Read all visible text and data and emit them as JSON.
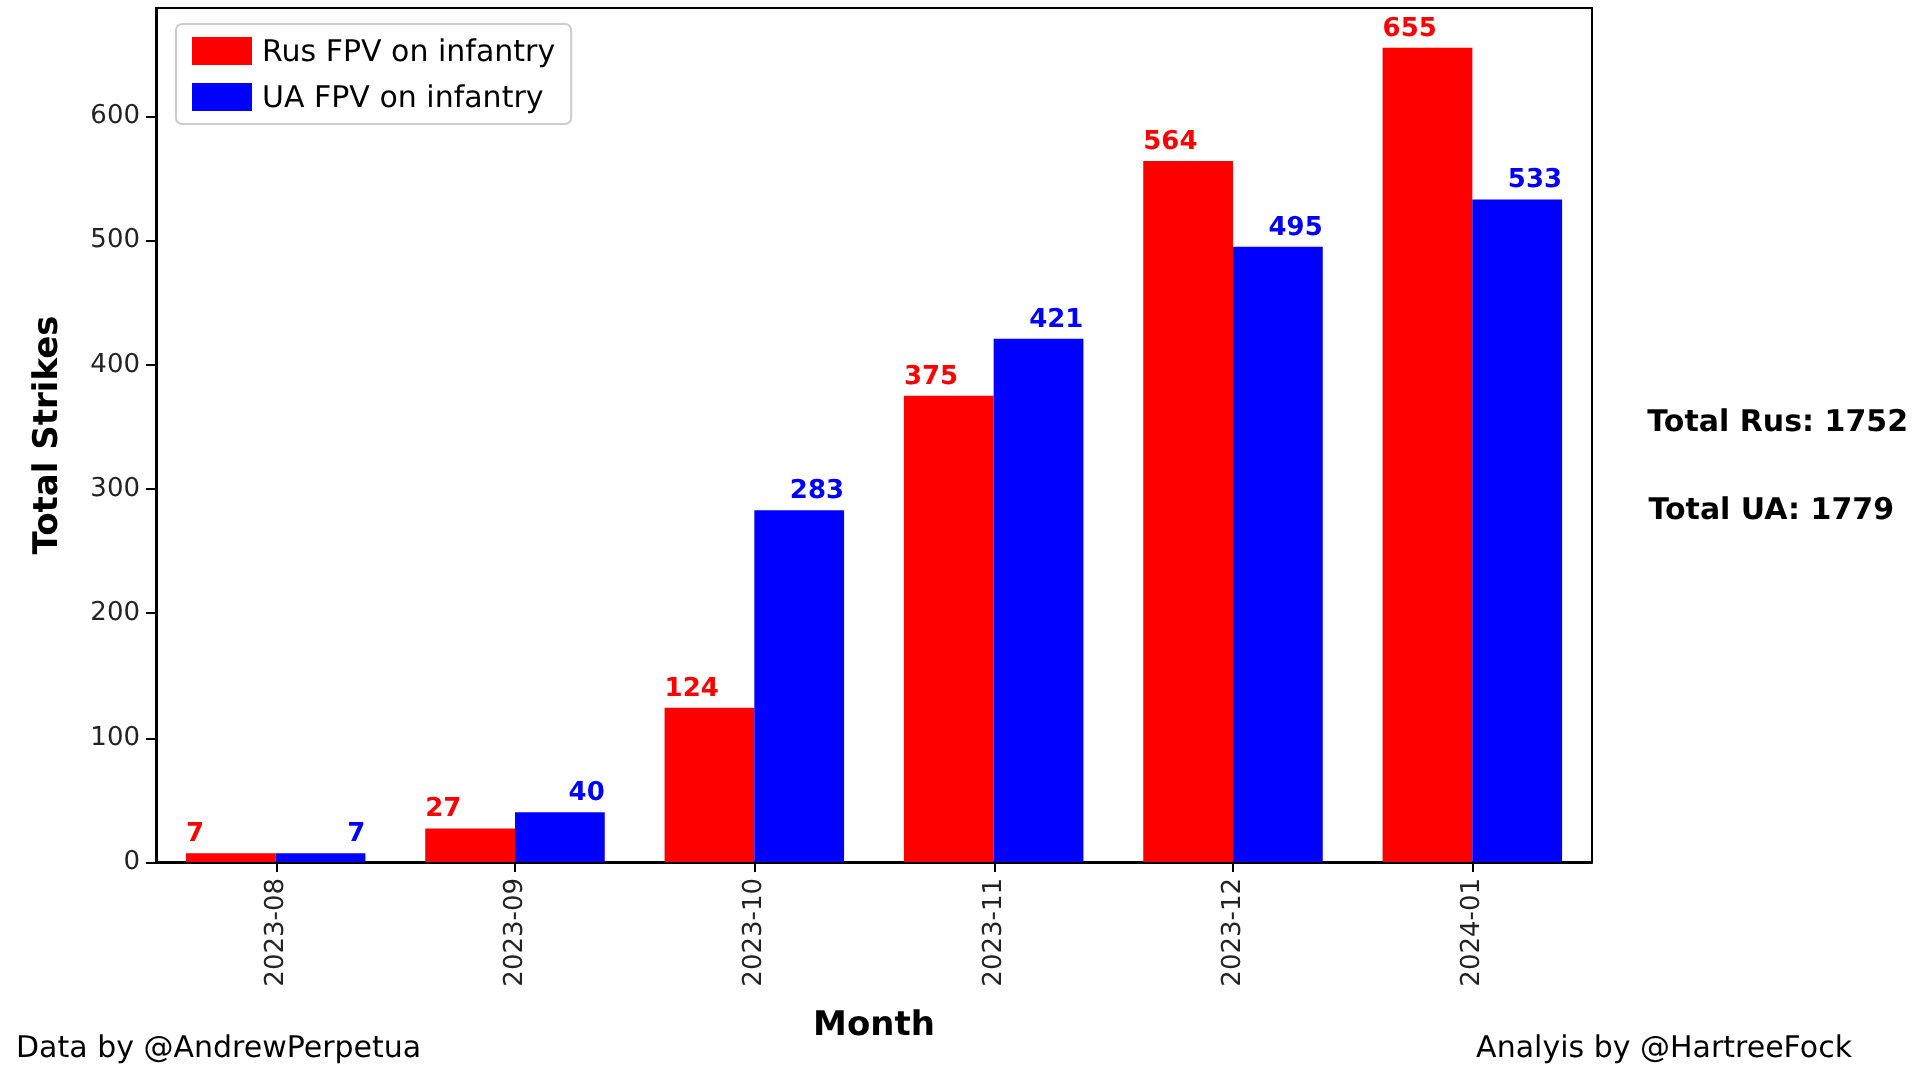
{
  "chart_data": {
    "type": "bar",
    "xlabel": "Month",
    "ylabel": "Total Strikes",
    "categories": [
      "2023-08",
      "2023-09",
      "2023-10",
      "2023-11",
      "2023-12",
      "2024-01"
    ],
    "series": [
      {
        "name": "Rus FPV on infantry",
        "color": "#ff0000",
        "values": [
          7,
          27,
          124,
          375,
          564,
          655
        ]
      },
      {
        "name": "UA FPV on infantry",
        "color": "#0000ff",
        "values": [
          7,
          40,
          283,
          421,
          495,
          533
        ]
      }
    ],
    "ylim": [
      0,
      687
    ],
    "yticks": [
      0,
      100,
      200,
      300,
      400,
      500,
      600
    ],
    "grid": false,
    "legend": "top left",
    "data_labels": true,
    "annotations": [
      "Total Rus: 1752",
      "Total UA: 1779",
      "Data by @AndrewPerpetua",
      "Analyis by @HartreeFock"
    ]
  }
}
